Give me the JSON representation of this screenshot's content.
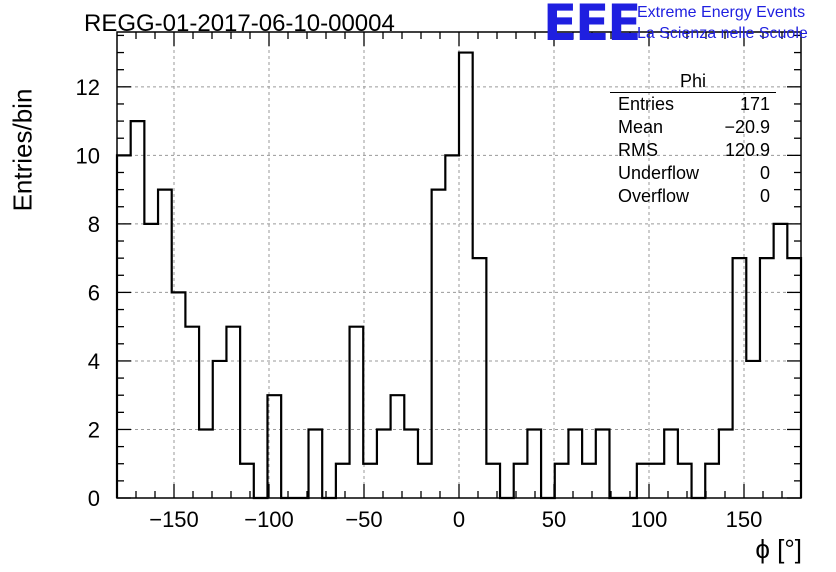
{
  "chart_data": {
    "type": "bar",
    "title": "REGG-01-2017-06-10-00004",
    "xlabel": "ϕ [°]",
    "ylabel": "Entries/bin",
    "xlim": [
      -180,
      180
    ],
    "ylim": [
      0,
      13.6
    ],
    "bin_width": 7.2,
    "x_ticks": [
      -150,
      -100,
      -50,
      0,
      50,
      100,
      150
    ],
    "y_ticks": [
      0,
      2,
      4,
      6,
      8,
      10,
      12
    ],
    "grid": true,
    "values": [
      10,
      11,
      8,
      9,
      6,
      5,
      2,
      4,
      5,
      1,
      0,
      3,
      0,
      0,
      2,
      0,
      1,
      5,
      1,
      2,
      3,
      2,
      1,
      9,
      10,
      13,
      7,
      1,
      0,
      1,
      2,
      0,
      1,
      2,
      1,
      2,
      0,
      0,
      1,
      1,
      2,
      1,
      0,
      1,
      2,
      7,
      4,
      7,
      8,
      7
    ],
    "line_color": "#000000"
  },
  "stats_box": {
    "title": "Phi",
    "rows": [
      {
        "label": "Entries",
        "value": "171"
      },
      {
        "label": "Mean",
        "value": "−20.9"
      },
      {
        "label": "RMS",
        "value": "120.9"
      },
      {
        "label": "Underflow",
        "value": "0"
      },
      {
        "label": "Overflow",
        "value": "0"
      }
    ]
  },
  "logo": {
    "letters": "EEE",
    "line1": "Extreme Energy Events",
    "line2": "La Scienza nelle Scuole",
    "color": "#1f1fe0"
  }
}
